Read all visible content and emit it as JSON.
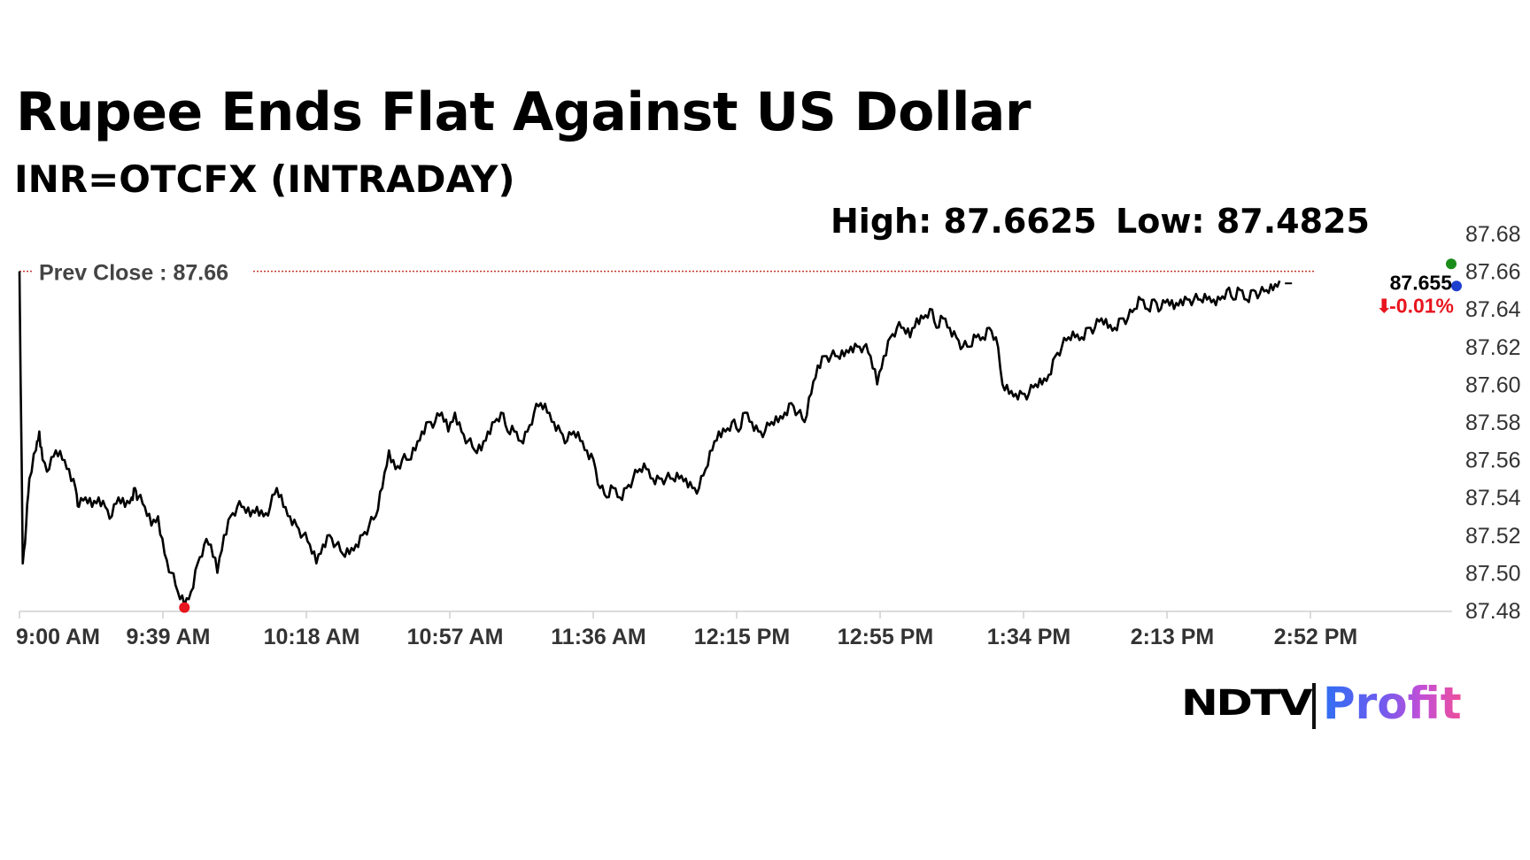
{
  "header": {
    "title": "Rupee Ends Flat Against US Dollar",
    "subtitle": "INR=OTCFX (INTRADAY)",
    "high_label": "High: 87.6625",
    "low_label": "Low: 87.4825"
  },
  "logo": {
    "brand": "NDTV",
    "product": "Profit"
  },
  "colors": {
    "line": "#000000",
    "prev_close_line": "#c0392b",
    "low_marker": "#e8141e",
    "high_marker": "#1a8c1a",
    "last_marker": "#1f3fcf",
    "change_negative": "#e8141e",
    "axis": "#cfcfcf"
  },
  "chart_data": {
    "type": "line",
    "title": "Rupee Ends Flat Against US Dollar",
    "subtitle": "INR=OTCFX (INTRADAY)",
    "x_tick_labels": [
      "9:00 AM",
      "9:39 AM",
      "10:18 AM",
      "10:57 AM",
      "11:36 AM",
      "12:15 PM",
      "12:55 PM",
      "1:34 PM",
      "2:13 PM",
      "2:52 PM"
    ],
    "y_tick_labels": [
      "87.48",
      "87.50",
      "87.52",
      "87.54",
      "87.56",
      "87.58",
      "87.60",
      "87.62",
      "87.64",
      "87.66",
      "87.68"
    ],
    "ylim": [
      87.48,
      87.68
    ],
    "x_range_minutes": [
      0,
      390
    ],
    "prev_close": {
      "label": "Prev Close : 87.66",
      "value": 87.66
    },
    "last": {
      "value_label": "87.655",
      "change_label": "-0.01%",
      "direction": "down"
    },
    "high": 87.6625,
    "low": 87.4825,
    "grid": false,
    "series": [
      {
        "points": [
          [
            0,
            87.66
          ],
          [
            1,
            87.505
          ],
          [
            2,
            87.525
          ],
          [
            3,
            87.55
          ],
          [
            5,
            87.565
          ],
          [
            6,
            87.575
          ],
          [
            7,
            87.56
          ],
          [
            9,
            87.555
          ],
          [
            11,
            87.565
          ],
          [
            13,
            87.56
          ],
          [
            15,
            87.555
          ],
          [
            17,
            87.545
          ],
          [
            18,
            87.535
          ],
          [
            20,
            87.54
          ],
          [
            22,
            87.535
          ],
          [
            24,
            87.54
          ],
          [
            26,
            87.535
          ],
          [
            28,
            87.53
          ],
          [
            30,
            87.54
          ],
          [
            32,
            87.535
          ],
          [
            34,
            87.54
          ],
          [
            35,
            87.545
          ],
          [
            36,
            87.54
          ],
          [
            38,
            87.535
          ],
          [
            40,
            87.525
          ],
          [
            42,
            87.53
          ],
          [
            44,
            87.51
          ],
          [
            46,
            87.5
          ],
          [
            48,
            87.49
          ],
          [
            50,
            87.4825
          ],
          [
            52,
            87.49
          ],
          [
            54,
            87.505
          ],
          [
            56,
            87.515
          ],
          [
            58,
            87.515
          ],
          [
            60,
            87.5
          ],
          [
            62,
            87.52
          ],
          [
            64,
            87.53
          ],
          [
            66,
            87.535
          ],
          [
            68,
            87.535
          ],
          [
            70,
            87.53
          ],
          [
            72,
            87.535
          ],
          [
            74,
            87.53
          ],
          [
            76,
            87.535
          ],
          [
            78,
            87.545
          ],
          [
            80,
            87.535
          ],
          [
            82,
            87.53
          ],
          [
            84,
            87.525
          ],
          [
            86,
            87.52
          ],
          [
            88,
            87.515
          ],
          [
            90,
            87.505
          ],
          [
            92,
            87.515
          ],
          [
            94,
            87.52
          ],
          [
            96,
            87.515
          ],
          [
            98,
            87.51
          ],
          [
            100,
            87.51
          ],
          [
            102,
            87.515
          ],
          [
            104,
            87.52
          ],
          [
            106,
            87.525
          ],
          [
            108,
            87.53
          ],
          [
            110,
            87.545
          ],
          [
            112,
            87.565
          ],
          [
            114,
            87.555
          ],
          [
            116,
            87.56
          ],
          [
            118,
            87.56
          ],
          [
            120,
            87.565
          ],
          [
            122,
            87.575
          ],
          [
            124,
            87.58
          ],
          [
            126,
            87.58
          ],
          [
            128,
            87.585
          ],
          [
            130,
            87.575
          ],
          [
            132,
            87.585
          ],
          [
            134,
            87.575
          ],
          [
            136,
            87.57
          ],
          [
            138,
            87.565
          ],
          [
            140,
            87.565
          ],
          [
            142,
            87.575
          ],
          [
            144,
            87.58
          ],
          [
            146,
            87.585
          ],
          [
            148,
            87.575
          ],
          [
            150,
            87.575
          ],
          [
            152,
            87.57
          ],
          [
            154,
            87.575
          ],
          [
            156,
            87.585
          ],
          [
            158,
            87.59
          ],
          [
            160,
            87.585
          ],
          [
            162,
            87.58
          ],
          [
            164,
            87.575
          ],
          [
            166,
            87.57
          ],
          [
            168,
            87.575
          ],
          [
            170,
            87.57
          ],
          [
            172,
            87.565
          ],
          [
            174,
            87.56
          ],
          [
            176,
            87.545
          ],
          [
            178,
            87.54
          ],
          [
            180,
            87.545
          ],
          [
            182,
            87.54
          ],
          [
            184,
            87.545
          ],
          [
            186,
            87.55
          ],
          [
            188,
            87.555
          ],
          [
            190,
            87.555
          ],
          [
            192,
            87.55
          ],
          [
            194,
            87.55
          ],
          [
            196,
            87.55
          ],
          [
            198,
            87.55
          ],
          [
            200,
            87.55
          ],
          [
            202,
            87.55
          ],
          [
            204,
            87.545
          ],
          [
            206,
            87.545
          ],
          [
            208,
            87.555
          ],
          [
            210,
            87.565
          ],
          [
            212,
            87.575
          ],
          [
            214,
            87.575
          ],
          [
            216,
            87.58
          ],
          [
            218,
            87.575
          ],
          [
            220,
            87.585
          ],
          [
            222,
            87.58
          ],
          [
            224,
            87.575
          ],
          [
            226,
            87.575
          ],
          [
            228,
            87.58
          ],
          [
            230,
            87.58
          ],
          [
            232,
            87.585
          ],
          [
            234,
            87.59
          ],
          [
            236,
            87.585
          ],
          [
            238,
            87.58
          ],
          [
            240,
            87.595
          ],
          [
            242,
            87.61
          ],
          [
            244,
            87.615
          ],
          [
            246,
            87.615
          ],
          [
            248,
            87.615
          ],
          [
            250,
            87.615
          ],
          [
            252,
            87.62
          ],
          [
            254,
            87.62
          ],
          [
            256,
            87.62
          ],
          [
            258,
            87.615
          ],
          [
            260,
            87.6
          ],
          [
            262,
            87.615
          ],
          [
            264,
            87.625
          ],
          [
            266,
            87.63
          ],
          [
            268,
            87.63
          ],
          [
            270,
            87.625
          ],
          [
            272,
            87.635
          ],
          [
            274,
            87.635
          ],
          [
            276,
            87.64
          ],
          [
            278,
            87.63
          ],
          [
            280,
            87.635
          ],
          [
            282,
            87.63
          ],
          [
            284,
            87.625
          ],
          [
            286,
            87.62
          ],
          [
            288,
            87.62
          ],
          [
            290,
            87.625
          ],
          [
            292,
            87.625
          ],
          [
            294,
            87.63
          ],
          [
            296,
            87.625
          ],
          [
            298,
            87.6
          ],
          [
            300,
            87.595
          ],
          [
            302,
            87.595
          ],
          [
            304,
            87.595
          ],
          [
            306,
            87.595
          ],
          [
            308,
            87.6
          ],
          [
            310,
            87.6
          ],
          [
            312,
            87.605
          ],
          [
            314,
            87.615
          ],
          [
            316,
            87.62
          ],
          [
            318,
            87.625
          ],
          [
            320,
            87.625
          ],
          [
            322,
            87.625
          ],
          [
            324,
            87.63
          ],
          [
            326,
            87.63
          ],
          [
            328,
            87.635
          ],
          [
            330,
            87.63
          ],
          [
            332,
            87.63
          ],
          [
            334,
            87.635
          ],
          [
            336,
            87.635
          ],
          [
            338,
            87.64
          ],
          [
            340,
            87.645
          ],
          [
            342,
            87.64
          ],
          [
            344,
            87.645
          ],
          [
            346,
            87.64
          ],
          [
            348,
            87.645
          ],
          [
            350,
            87.64
          ],
          [
            352,
            87.645
          ],
          [
            354,
            87.645
          ],
          [
            356,
            87.645
          ],
          [
            358,
            87.645
          ],
          [
            360,
            87.645
          ],
          [
            362,
            87.645
          ],
          [
            364,
            87.645
          ],
          [
            366,
            87.65
          ],
          [
            368,
            87.645
          ],
          [
            370,
            87.65
          ],
          [
            372,
            87.645
          ],
          [
            374,
            87.65
          ],
          [
            376,
            87.648
          ],
          [
            378,
            87.65
          ],
          [
            380,
            87.65
          ],
          [
            382,
            87.655
          ]
        ]
      }
    ]
  }
}
